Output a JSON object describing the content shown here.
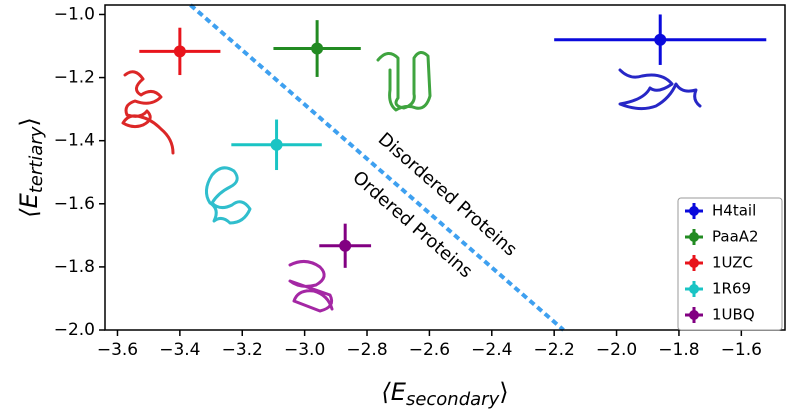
{
  "chart_data": {
    "type": "scatter",
    "xlabel": {
      "open": "⟨E",
      "subscript": "secondary",
      "close": "⟩"
    },
    "ylabel": {
      "open": "⟨E",
      "subscript": "tertiary",
      "close": "⟩"
    },
    "series": [
      {
        "name": "H4tail",
        "color": "#0a0adc",
        "x": [
          -1.86
        ],
        "y": [
          -1.08
        ],
        "xerr": [
          0.34
        ],
        "yerr": [
          0.08
        ]
      },
      {
        "name": "PaaA2",
        "color": "#228b22",
        "x": [
          -2.96
        ],
        "y": [
          -1.108
        ],
        "xerr": [
          0.14
        ],
        "yerr": [
          0.09
        ]
      },
      {
        "name": "1UZC",
        "color": "#e8141c",
        "x": [
          -3.4
        ],
        "y": [
          -1.117
        ],
        "xerr": [
          0.13
        ],
        "yerr": [
          0.075
        ]
      },
      {
        "name": "1R69",
        "color": "#1ac4c4",
        "x": [
          -3.09
        ],
        "y": [
          -1.413
        ],
        "xerr": [
          0.145
        ],
        "yerr": [
          0.08
        ]
      },
      {
        "name": "1UBQ",
        "color": "#820082",
        "x": [
          -2.87
        ],
        "y": [
          -1.733
        ],
        "xerr": [
          0.083
        ],
        "yerr": [
          0.07
        ]
      }
    ],
    "divider": {
      "color": "#3ea0f0",
      "x": [
        -3.366,
        -2.17
      ],
      "y": [
        -0.97,
        -2.0
      ]
    },
    "annotations": [
      "Disordered Proteins",
      "Ordered Proteins"
    ],
    "xlim": [
      -3.64,
      -1.46
    ],
    "ylim": [
      -2.0,
      -0.97
    ],
    "xticks": [
      {
        "value": -3.6,
        "label": "−3.6"
      },
      {
        "value": -3.4,
        "label": "−3.4"
      },
      {
        "value": -3.2,
        "label": "−3.2"
      },
      {
        "value": -3.0,
        "label": "−3.0"
      },
      {
        "value": -2.8,
        "label": "−2.8"
      },
      {
        "value": -2.6,
        "label": "−2.6"
      },
      {
        "value": -2.4,
        "label": "−2.4"
      },
      {
        "value": -2.2,
        "label": "−2.2"
      },
      {
        "value": -2.0,
        "label": "−2.0"
      },
      {
        "value": -1.8,
        "label": "−1.8"
      },
      {
        "value": -1.6,
        "label": "−1.6"
      }
    ],
    "yticks": [
      {
        "value": -1.0,
        "label": "−1.0"
      },
      {
        "value": -1.2,
        "label": "−1.2"
      },
      {
        "value": -1.4,
        "label": "−1.4"
      },
      {
        "value": -1.6,
        "label": "−1.6"
      },
      {
        "value": -1.8,
        "label": "−1.8"
      },
      {
        "value": -2.0,
        "label": "−2.0"
      }
    ],
    "legend": "lower right"
  }
}
